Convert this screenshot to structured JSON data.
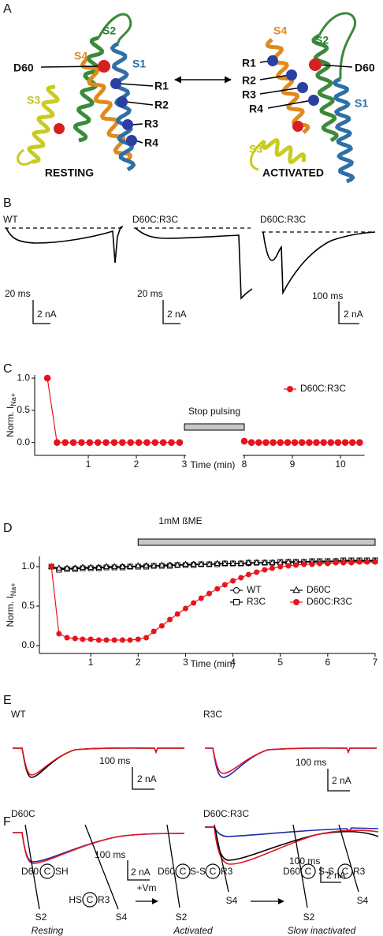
{
  "figure": {
    "A": {
      "label": "A",
      "resting": {
        "title": "RESTING",
        "segments": [
          "S2",
          "S4",
          "S1",
          "S3"
        ],
        "residues": [
          "D60",
          "R1",
          "R2",
          "R3",
          "R4"
        ]
      },
      "activated": {
        "title": "ACTIVATED",
        "segments": [
          "S4",
          "S2",
          "S1",
          "S3"
        ],
        "residues": [
          "R1",
          "R2",
          "R3",
          "R4",
          "D60"
        ]
      }
    },
    "B": {
      "label": "B",
      "traces": [
        {
          "name": "WT",
          "time": "20 ms",
          "current": "2 nA"
        },
        {
          "name": "D60C:R3C",
          "time": "20 ms",
          "current": "2 nA"
        },
        {
          "name": "D60C:R3C",
          "time": "100 ms",
          "current": "2 nA"
        }
      ]
    },
    "E": {
      "label": "E",
      "traces": [
        {
          "name": "WT",
          "time": "100 ms",
          "current": "2 nA"
        },
        {
          "name": "R3C",
          "time": "100 ms",
          "current": "2 nA"
        },
        {
          "name": "D60C",
          "time": "100 ms",
          "current": "2 nA"
        },
        {
          "name": "D60C:R3C",
          "time": "100 ms",
          "current": "2 nA"
        }
      ]
    },
    "F": {
      "label": "F",
      "stimulus": "+Vm",
      "states": [
        {
          "caption": "Resting",
          "labels": [
            "D60",
            "C",
            "SH",
            "HS",
            "C",
            "R3",
            "S2",
            "S4"
          ]
        },
        {
          "caption": "Activated",
          "labels": [
            "D60",
            "C",
            "S-S",
            "C",
            "R3",
            "S4",
            "S2"
          ]
        },
        {
          "caption": "Slow inactivated",
          "labels": [
            "D60",
            "C",
            "S-S",
            "C",
            "R3",
            "S4",
            "S2"
          ]
        }
      ]
    }
  },
  "chart_data": [
    {
      "type": "line",
      "panel_label": "C",
      "xlabel": "Time (min)",
      "ylabel": "Norm. I",
      "ylabel_sub": "Na+",
      "x": [
        0.15,
        0.35,
        0.52,
        0.69,
        0.86,
        1.03,
        1.2,
        1.37,
        1.54,
        1.71,
        1.88,
        2.05,
        2.22,
        2.39,
        2.56,
        2.73,
        2.9,
        8,
        8.15,
        8.3,
        8.45,
        8.6,
        8.75,
        8.9,
        9.05,
        9.2,
        9.35,
        9.5,
        9.65,
        9.8,
        9.95,
        10.1,
        10.25,
        10.4
      ],
      "series": [
        {
          "name": "D60C:R3C",
          "color": "#e8141c",
          "marker": "circle",
          "marker_fill": "#e8141c",
          "values": [
            1.0,
            0,
            0,
            0,
            0,
            0,
            0,
            0,
            0,
            0,
            0,
            0,
            0,
            0,
            0,
            0,
            0,
            0.02,
            0,
            0,
            0,
            0,
            0,
            0,
            0,
            0,
            0,
            0,
            0,
            0,
            0,
            0,
            0,
            0
          ]
        }
      ],
      "xlim": [
        0,
        10.5
      ],
      "x_break": [
        3,
        8
      ],
      "xticks": [
        1,
        2,
        3,
        8,
        9,
        10
      ],
      "ylim": [
        -0.2,
        1.05
      ],
      "yticks": [
        {
          "value": 0,
          "label": "0.0"
        },
        {
          "value": 0.5,
          "label": "0.5"
        },
        {
          "value": 1,
          "label": "1.0"
        }
      ],
      "annotations": [
        {
          "text": "Stop pulsing",
          "x": [
            3,
            8
          ]
        }
      ],
      "legend": "top-right"
    },
    {
      "type": "line",
      "panel_label": "D",
      "xlabel": "Time (min)",
      "ylabel": "Norm. I",
      "ylabel_sub": "Na+",
      "x": [
        0.17,
        0.33,
        0.5,
        0.67,
        0.83,
        1,
        1.17,
        1.33,
        1.5,
        1.67,
        1.83,
        2,
        2.17,
        2.33,
        2.5,
        2.67,
        2.83,
        3,
        3.17,
        3.33,
        3.5,
        3.67,
        3.83,
        4,
        4.17,
        4.33,
        4.5,
        4.67,
        4.83,
        5,
        5.17,
        5.33,
        5.5,
        5.67,
        5.83,
        6,
        6.17,
        6.33,
        6.5,
        6.67,
        6.83,
        7
      ],
      "series": [
        {
          "name": "WT",
          "color": "#000000",
          "marker": "circle",
          "marker_fill": "#ffffff",
          "values": [
            1.0,
            0.97,
            0.97,
            0.98,
            0.98,
            0.98,
            0.99,
            0.99,
            0.99,
            1.0,
            1.0,
            1.0,
            1.01,
            1.01,
            1.01,
            1.02,
            1.02,
            1.02,
            1.03,
            1.03,
            1.03,
            1.03,
            1.04,
            1.04,
            1.04,
            1.04,
            1.05,
            1.05,
            1.05,
            1.05,
            1.05,
            1.06,
            1.06,
            1.06,
            1.06,
            1.06,
            1.07,
            1.07,
            1.07,
            1.07,
            1.07,
            1.07
          ]
        },
        {
          "name": "R3C",
          "color": "#000000",
          "marker": "square",
          "marker_fill": "#ffffff",
          "values": [
            1.0,
            0.96,
            0.97,
            0.97,
            0.98,
            0.98,
            0.98,
            0.99,
            0.99,
            0.99,
            1.0,
            1.0,
            1.0,
            1.01,
            1.01,
            1.01,
            1.02,
            1.02,
            1.02,
            1.03,
            1.03,
            1.03,
            1.04,
            1.04,
            1.04,
            1.05,
            1.05,
            1.05,
            1.05,
            1.06,
            1.06,
            1.06,
            1.06,
            1.07,
            1.07,
            1.07,
            1.07,
            1.08,
            1.08,
            1.08,
            1.08,
            1.08
          ]
        },
        {
          "name": "D60C",
          "color": "#000000",
          "marker": "triangle",
          "marker_fill": "#ffffff",
          "values": [
            1.0,
            0.98,
            0.98,
            0.98,
            0.99,
            0.99,
            0.99,
            1.0,
            1.0,
            1.0,
            1.0,
            1.01,
            1.01,
            1.01,
            1.02,
            1.02,
            1.02,
            1.03,
            1.03,
            1.03,
            1.03,
            1.04,
            1.04,
            1.04,
            1.04,
            1.05,
            1.05,
            1.05,
            1.05,
            1.05,
            1.06,
            1.06,
            1.06,
            1.06,
            1.06,
            1.06,
            1.07,
            1.07,
            1.07,
            1.07,
            1.07,
            1.07
          ]
        },
        {
          "name": "D60C:R3C",
          "color": "#e8141c",
          "marker": "circle",
          "marker_fill": "#e8141c",
          "values": [
            1.0,
            0.15,
            0.1,
            0.09,
            0.08,
            0.08,
            0.07,
            0.07,
            0.07,
            0.07,
            0.07,
            0.08,
            0.1,
            0.18,
            0.25,
            0.33,
            0.4,
            0.47,
            0.54,
            0.6,
            0.66,
            0.72,
            0.77,
            0.82,
            0.86,
            0.9,
            0.93,
            0.96,
            0.98,
            1.0,
            1.01,
            1.02,
            1.03,
            1.03,
            1.04,
            1.04,
            1.05,
            1.05,
            1.05,
            1.06,
            1.06,
            1.06
          ]
        }
      ],
      "xlim": [
        0,
        7
      ],
      "xticks": [
        1,
        2,
        3,
        4,
        5,
        6,
        7
      ],
      "ylim": [
        -0.1,
        1.13
      ],
      "yticks": [
        {
          "value": 0,
          "label": "0.0"
        },
        {
          "value": 0.5,
          "label": "0.5"
        },
        {
          "value": 1,
          "label": "1.0"
        }
      ],
      "annotations": [
        {
          "text": "1mM ßME",
          "x": [
            2,
            7
          ]
        }
      ],
      "legend": "bottom-right"
    }
  ]
}
